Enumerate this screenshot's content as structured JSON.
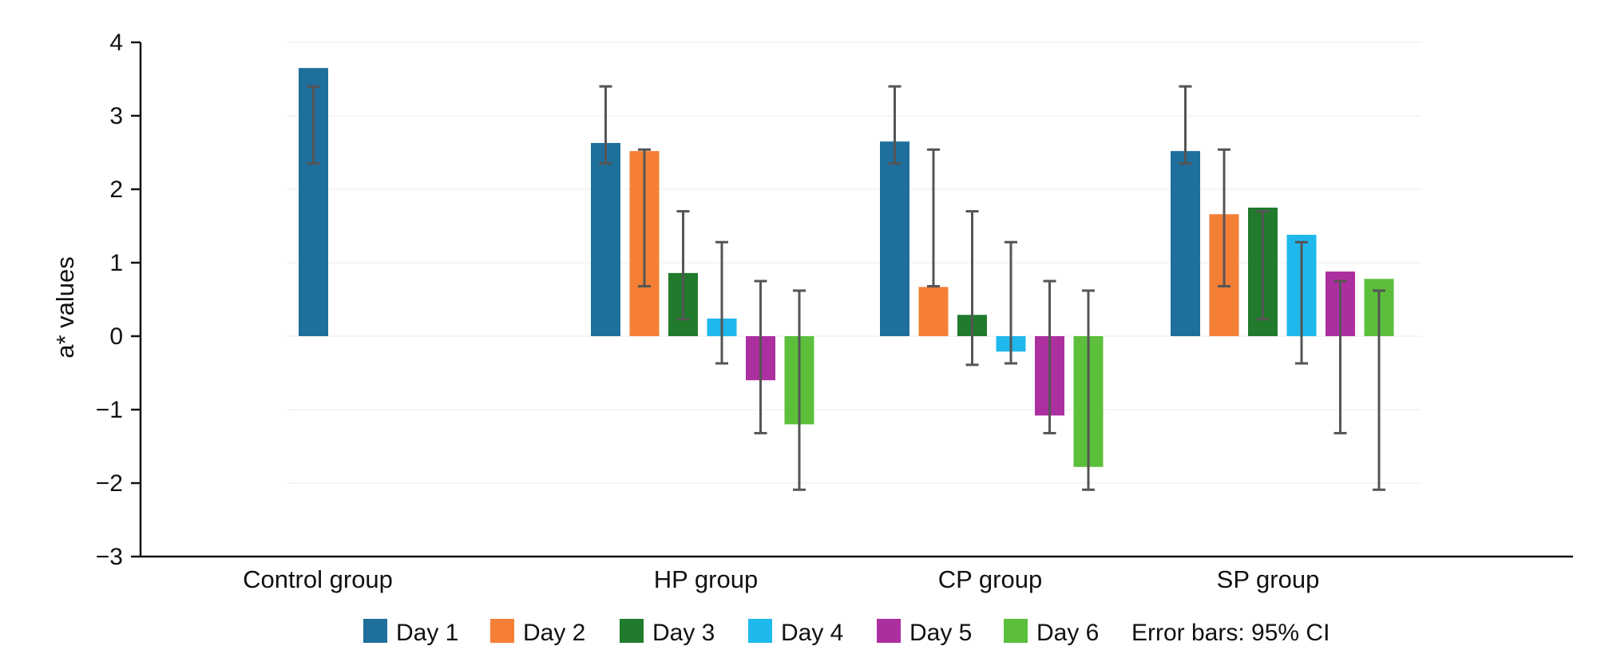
{
  "chart_data": {
    "type": "bar",
    "ylabel": "a* values",
    "ylim": [
      -3,
      4
    ],
    "y_ticks": [
      "4",
      "3",
      "2",
      "1",
      "0",
      "−1",
      "−2",
      "−3"
    ],
    "y_tick_values": [
      4,
      3,
      2,
      1,
      0,
      -1,
      -2,
      -3
    ],
    "grid": false,
    "legend_position": "bottom",
    "categories": [
      "Control group",
      "HP group",
      "CP group",
      "SP group"
    ],
    "series": [
      {
        "name": "Day 1",
        "color": "#1f6f9c",
        "values": [
          3.65,
          2.63,
          2.65,
          2.52
        ],
        "ci": [
          [
            2.35,
            3.4
          ],
          [
            2.35,
            3.4
          ],
          [
            2.35,
            3.4
          ],
          [
            2.35,
            3.4
          ]
        ]
      },
      {
        "name": "Day 2",
        "color": "#f47f35",
        "values": [
          null,
          2.52,
          0.67,
          1.66
        ],
        "ci": [
          null,
          [
            0.68,
            2.54
          ],
          [
            0.68,
            2.54
          ],
          [
            0.68,
            2.54
          ]
        ]
      },
      {
        "name": "Day 3",
        "color": "#217b2c",
        "values": [
          null,
          0.86,
          0.29,
          1.75
        ],
        "ci": [
          null,
          [
            0.23,
            1.7
          ],
          [
            -0.39,
            1.7
          ],
          [
            0.23,
            1.7
          ]
        ]
      },
      {
        "name": "Day 4",
        "color": "#1fb8ec",
        "values": [
          null,
          0.24,
          -0.21,
          1.38
        ],
        "ci": [
          null,
          [
            -0.37,
            1.28
          ],
          [
            -0.37,
            1.28
          ],
          [
            -0.37,
            1.28
          ]
        ]
      },
      {
        "name": "Day 5",
        "color": "#ac2fa0",
        "values": [
          null,
          -0.6,
          -1.08,
          0.88
        ],
        "ci": [
          null,
          [
            -1.32,
            0.75
          ],
          [
            -1.32,
            0.75
          ],
          [
            -1.32,
            0.75
          ]
        ]
      },
      {
        "name": "Day 6",
        "color": "#5cbf3b",
        "values": [
          null,
          -1.2,
          -1.78,
          0.78
        ],
        "ci": [
          null,
          [
            -2.09,
            0.62
          ],
          [
            -2.09,
            0.62
          ],
          [
            -2.09,
            0.62
          ]
        ]
      }
    ],
    "legend_note": "Error bars: 95% CI"
  }
}
